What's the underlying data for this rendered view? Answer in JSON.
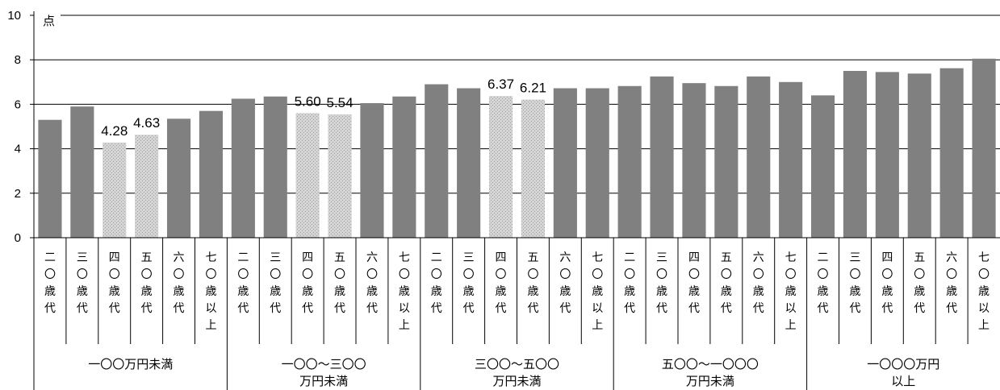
{
  "chart_data": {
    "type": "bar",
    "unit_label": "点",
    "ylim": [
      0,
      10
    ],
    "yticks": [
      "0",
      "2",
      "4",
      "6",
      "8",
      "10"
    ],
    "grid": true,
    "bar_color": "#808080",
    "highlight_pattern_colors": [
      "#d4d4d4",
      "#a0a0a0"
    ],
    "groups": [
      {
        "lines": [
          "一〇〇万円未満"
        ],
        "categories": [
          "二〇歳代",
          "三〇歳代",
          "四〇歳代",
          "五〇歳代",
          "六〇歳代",
          "七〇歳以上"
        ]
      },
      {
        "lines": [
          "一〇〇～三〇〇",
          "万円未満"
        ],
        "categories": [
          "二〇歳代",
          "三〇歳代",
          "四〇歳代",
          "五〇歳代",
          "六〇歳代",
          "七〇歳以上"
        ]
      },
      {
        "lines": [
          "三〇〇～五〇〇",
          "万円未満"
        ],
        "categories": [
          "二〇歳代",
          "三〇歳代",
          "四〇歳代",
          "五〇歳代",
          "六〇歳代",
          "七〇歳以上"
        ]
      },
      {
        "lines": [
          "五〇〇～一〇〇〇",
          "万円未満"
        ],
        "categories": [
          "二〇歳代",
          "三〇歳代",
          "四〇歳代",
          "五〇歳代",
          "六〇歳代",
          "七〇歳以上"
        ]
      },
      {
        "lines": [
          "一〇〇〇万円",
          "以上"
        ],
        "categories": [
          "二〇歳代",
          "三〇歳代",
          "四〇歳代",
          "五〇歳代",
          "六〇歳代",
          "七〇歳以上"
        ]
      }
    ],
    "values": [
      5.3,
      5.9,
      4.28,
      4.63,
      5.35,
      5.7,
      6.25,
      6.35,
      5.6,
      5.54,
      6.05,
      6.35,
      6.9,
      6.72,
      6.37,
      6.21,
      6.72,
      6.72,
      6.82,
      7.25,
      6.95,
      6.82,
      7.25,
      7.0,
      6.4,
      7.5,
      7.45,
      7.38,
      7.62,
      8.05
    ],
    "highlighted": [
      2,
      3,
      8,
      9,
      14,
      15
    ],
    "data_labels": [
      {
        "index": 2,
        "text": "4.28"
      },
      {
        "index": 3,
        "text": "4.63"
      },
      {
        "index": 8,
        "text": "5.60"
      },
      {
        "index": 9,
        "text": "5.54"
      },
      {
        "index": 14,
        "text": "6.37"
      },
      {
        "index": 15,
        "text": "6.21"
      }
    ]
  }
}
